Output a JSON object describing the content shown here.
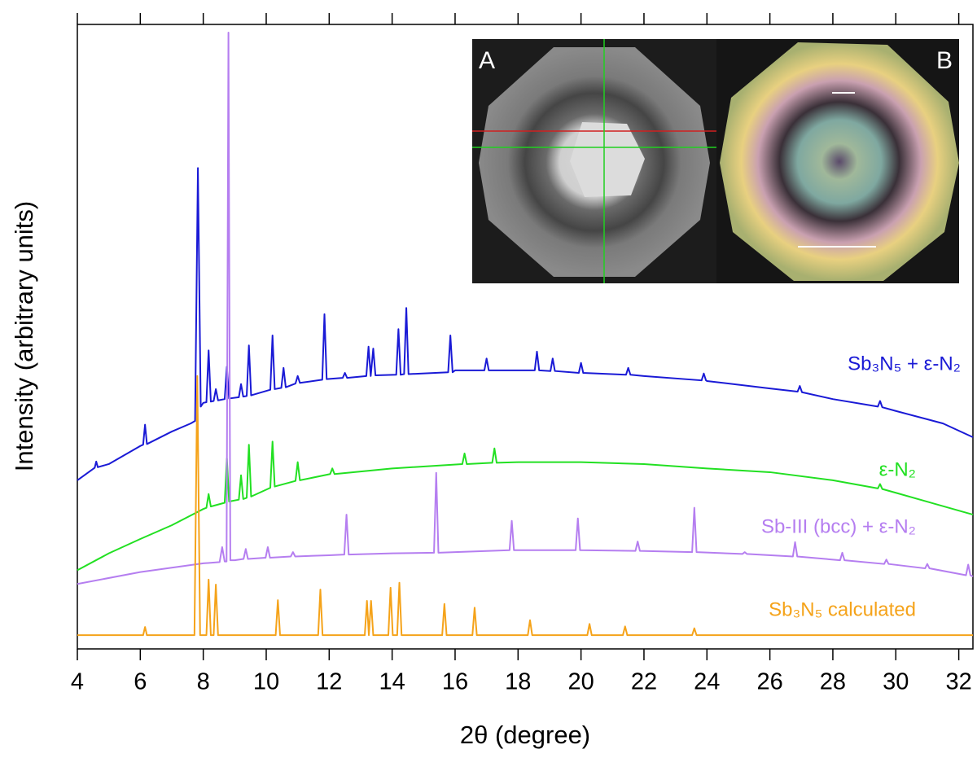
{
  "chart_data": {
    "type": "line",
    "x_label": "2θ (degree)",
    "y_label": "Intensity (arbitrary units)",
    "xlim": [
      4,
      32.45
    ],
    "ylim": [
      0,
      100
    ],
    "xticks": [
      4,
      6,
      8,
      10,
      12,
      14,
      16,
      18,
      20,
      22,
      24,
      26,
      28,
      30,
      32
    ],
    "inset_labels": [
      "A",
      "B"
    ],
    "series": [
      {
        "name": "Sb₃N₅ + ε-N₂",
        "color": "#1a1ad6",
        "x": [
          4,
          4.55,
          4.6,
          4.65,
          5,
          6,
          6.09,
          6.15,
          6.21,
          7,
          7.6,
          7.74,
          7.83,
          7.92,
          8.0,
          8.1,
          8.17,
          8.24,
          8.33,
          8.4,
          8.47,
          8.68,
          8.75,
          8.82,
          9.13,
          9.2,
          9.27,
          9.38,
          9.45,
          9.52,
          10.13,
          10.2,
          10.27,
          10.48,
          10.55,
          10.62,
          10.93,
          11,
          11.07,
          11.78,
          11.85,
          11.92,
          12.43,
          12.5,
          12.57,
          13.18,
          13.25,
          13.32,
          13.4,
          13.47,
          14.13,
          14.2,
          14.27,
          14.38,
          14.45,
          14.52,
          15.78,
          15.85,
          15.92,
          16,
          16.93,
          17,
          17.07,
          18,
          18.53,
          18.6,
          18.67,
          19.03,
          19.1,
          19.17,
          19.93,
          20,
          20.07,
          21.43,
          21.5,
          21.57,
          22,
          23.83,
          23.9,
          23.97,
          24,
          26,
          26.88,
          26.95,
          27.02,
          28,
          29.43,
          29.5,
          29.57,
          30,
          31.5,
          32.45
        ],
        "values": [
          27.0,
          29.0,
          30.0,
          29.1,
          29.6,
          32.5,
          32.7,
          35.9,
          32.8,
          34.8,
          36.1,
          36.5,
          77.0,
          38.8,
          39.4,
          39.5,
          47.8,
          39.6,
          39.7,
          41.6,
          39.8,
          40.0,
          45.2,
          40.1,
          40.3,
          42.4,
          40.4,
          40.5,
          48.6,
          40.6,
          41.5,
          50.2,
          41.6,
          41.8,
          45.0,
          41.9,
          42.5,
          43.7,
          42.6,
          43.1,
          53.6,
          43.2,
          43.4,
          44.2,
          43.4,
          43.7,
          48.4,
          43.7,
          48.1,
          43.8,
          43.9,
          51.2,
          43.9,
          44.0,
          54.6,
          44.0,
          44.3,
          50.2,
          44.3,
          44.6,
          44.6,
          46.5,
          44.6,
          44.6,
          44.6,
          47.6,
          44.6,
          44.5,
          46.5,
          44.5,
          44.2,
          45.8,
          44.2,
          43.9,
          45.0,
          43.9,
          43.7,
          43.0,
          44.1,
          43.0,
          42.9,
          41.7,
          41.2,
          42.1,
          41.1,
          40.0,
          38.8,
          39.7,
          38.7,
          38.1,
          36.1,
          33.9
        ]
      },
      {
        "name": "ε-N₂",
        "color": "#22e022",
        "x": [
          4,
          5,
          6,
          7,
          8,
          8.1,
          8.17,
          8.24,
          8.68,
          8.75,
          8.82,
          9.13,
          9.2,
          9.27,
          9.38,
          9.45,
          9.52,
          10.13,
          10.2,
          10.27,
          10.93,
          11,
          11.07,
          12.03,
          12.1,
          12.17,
          14,
          16.23,
          16.3,
          16.37,
          17.18,
          17.25,
          17.32,
          18,
          20,
          22,
          24,
          26,
          28,
          29.43,
          29.5,
          29.57,
          30,
          32.45
        ],
        "values": [
          12.6,
          15.3,
          17.6,
          19.8,
          22.4,
          22.6,
          24.8,
          22.8,
          23.4,
          30.5,
          23.6,
          23.9,
          27.8,
          24.0,
          24.2,
          32.7,
          24.4,
          25.8,
          33.2,
          26.0,
          26.9,
          29.9,
          27.0,
          28.0,
          28.9,
          28.0,
          28.9,
          29.6,
          31.3,
          29.6,
          29.8,
          32.1,
          29.8,
          29.9,
          29.9,
          29.6,
          28.9,
          28.3,
          27.0,
          25.7,
          26.4,
          25.6,
          25.0,
          21.5
        ]
      },
      {
        "name": "Sb-III (bcc) + ε-N₂",
        "color": "#b57ef0",
        "x": [
          4,
          6,
          8,
          8.52,
          8.6,
          8.68,
          8.74,
          8.8,
          8.86,
          9,
          9.28,
          9.35,
          9.42,
          9.98,
          10.05,
          10.12,
          10.78,
          10.85,
          10.92,
          12,
          12.48,
          12.55,
          12.62,
          14,
          15.33,
          15.4,
          15.47,
          16,
          17.73,
          17.8,
          17.87,
          19.83,
          19.9,
          19.97,
          21.73,
          21.8,
          21.87,
          23.53,
          23.6,
          23.67,
          25.13,
          25.2,
          25.27,
          26.73,
          26.8,
          26.87,
          28.23,
          28.3,
          28.37,
          29.63,
          29.7,
          29.77,
          30.93,
          31,
          31.07,
          32.23,
          32.3,
          32.37,
          32.45
        ],
        "values": [
          10.4,
          12.3,
          13.7,
          13.9,
          16.3,
          14.0,
          14.0,
          98.7,
          14.2,
          14.2,
          14.4,
          16.0,
          14.4,
          14.6,
          16.3,
          14.6,
          14.8,
          15.5,
          14.8,
          15.0,
          15.1,
          21.5,
          15.1,
          15.3,
          15.4,
          28.2,
          15.4,
          15.5,
          15.8,
          20.5,
          15.8,
          15.8,
          20.9,
          15.8,
          15.7,
          17.2,
          15.7,
          15.5,
          22.6,
          15.5,
          15.2,
          15.5,
          15.2,
          14.8,
          17.1,
          14.8,
          14.2,
          15.4,
          14.2,
          13.6,
          14.3,
          13.6,
          12.9,
          13.6,
          12.9,
          11.8,
          13.5,
          11.8,
          11.6
        ]
      },
      {
        "name": "Sb₃N₅ calculated",
        "color": "#f5a31a",
        "x": [
          4,
          6.09,
          6.15,
          6.21,
          7.72,
          7.81,
          7.9,
          8.1,
          8.17,
          8.24,
          8.33,
          8.4,
          8.47,
          10.3,
          10.37,
          10.44,
          11.65,
          11.72,
          11.79,
          13.13,
          13.2,
          13.26,
          13.33,
          13.4,
          13.88,
          13.95,
          14.02,
          14.16,
          14.23,
          14.3,
          15.59,
          15.66,
          15.73,
          16.55,
          16.62,
          16.69,
          18.31,
          18.38,
          18.45,
          20.2,
          20.27,
          20.34,
          21.33,
          21.4,
          21.47,
          23.53,
          23.6,
          23.67,
          32.45
        ],
        "values": [
          2.2,
          2.2,
          3.5,
          2.2,
          2.2,
          43.7,
          2.2,
          2.2,
          11.1,
          2.2,
          2.2,
          10.3,
          2.2,
          2.2,
          7.8,
          2.2,
          2.2,
          9.5,
          2.2,
          2.2,
          7.7,
          2.2,
          7.7,
          2.2,
          2.2,
          9.8,
          2.2,
          2.2,
          10.6,
          2.2,
          2.2,
          7.2,
          2.2,
          2.2,
          6.6,
          2.2,
          2.2,
          4.6,
          2.2,
          2.2,
          4.0,
          2.2,
          2.2,
          3.6,
          2.2,
          2.2,
          3.3,
          2.2,
          2.2
        ]
      }
    ]
  }
}
